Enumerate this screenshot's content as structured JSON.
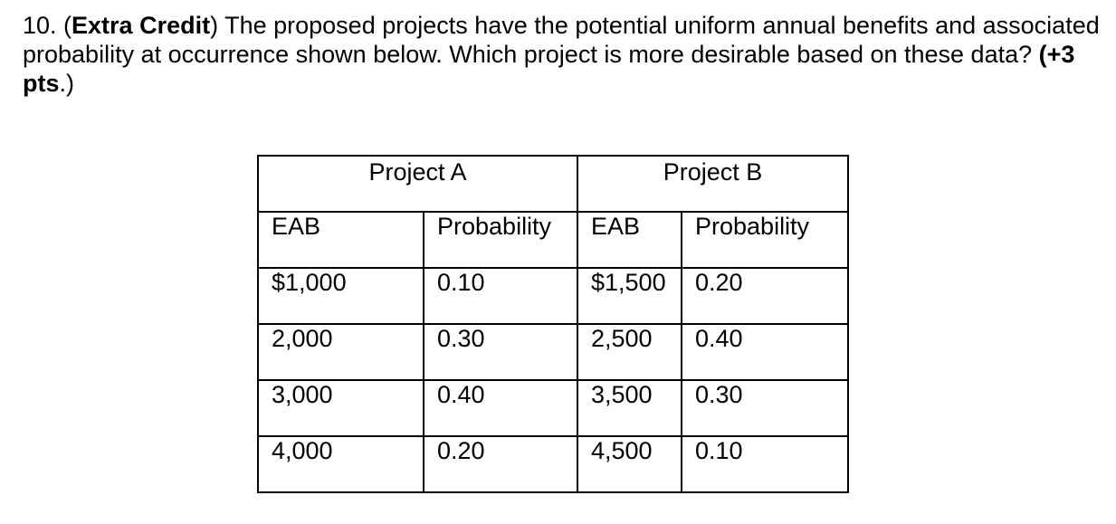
{
  "question": {
    "number": "10. (",
    "extra_credit": "Extra Credit",
    "text_part1": ") The proposed projects have the potential uniform annual benefits and associated probability at occurrence shown below.  Which project is more desirable based on these data? ",
    "points": "(+3 pts",
    "text_end": ".)"
  },
  "table": {
    "project_a": "Project A",
    "project_b": "Project B",
    "col_eab_a": "EAB",
    "col_prob_a": "Probability",
    "col_eab_b": "EAB",
    "col_prob_b": "Probability",
    "rows": [
      {
        "eab_a": "$1,000",
        "prob_a": "0.10",
        "eab_b": "$1,500",
        "prob_b": "0.20"
      },
      {
        "eab_a": "2,000",
        "prob_a": "0.30",
        "eab_b": "2,500",
        "prob_b": "0.40"
      },
      {
        "eab_a": "3,000",
        "prob_a": "0.40",
        "eab_b": "3,500",
        "prob_b": "0.30"
      },
      {
        "eab_a": "4,000",
        "prob_a": "0.20",
        "eab_b": "4,500",
        "prob_b": "0.10"
      }
    ]
  }
}
